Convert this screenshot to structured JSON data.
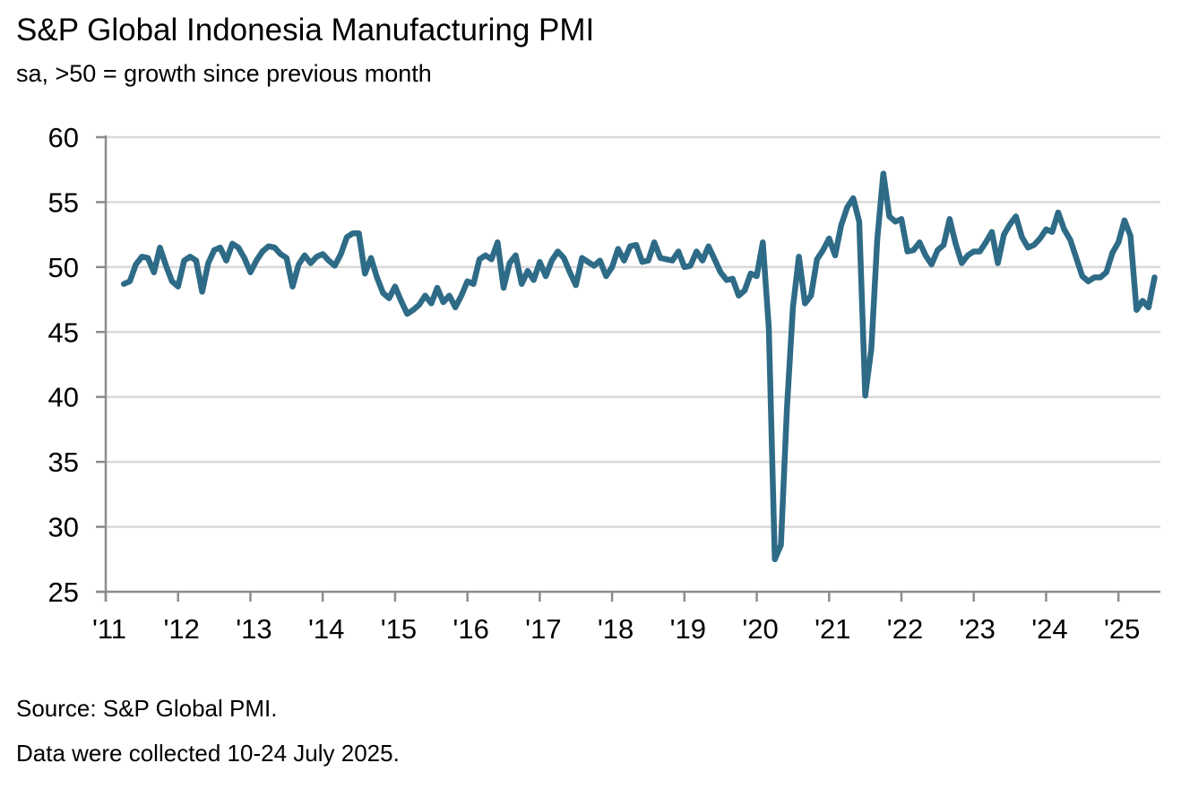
{
  "chart_data": {
    "type": "line",
    "title": "S&P Global Indonesia Manufacturing PMI",
    "subtitle": "sa, >50 = growth since previous month",
    "xlabel": "",
    "ylabel": "",
    "ylim": [
      25,
      60
    ],
    "yticks": [
      25,
      30,
      35,
      40,
      45,
      50,
      55,
      60
    ],
    "ytick_labels": [
      "25",
      "30",
      "35",
      "40",
      "45",
      "50",
      "55",
      "60"
    ],
    "xlim": [
      2011.0,
      2025.58
    ],
    "xticks": [
      2011,
      2012,
      2013,
      2014,
      2015,
      2016,
      2017,
      2018,
      2019,
      2020,
      2021,
      2022,
      2023,
      2024,
      2025
    ],
    "xtick_labels": [
      "'11",
      "'12",
      "'13",
      "'14",
      "'15",
      "'16",
      "'17",
      "'18",
      "'19",
      "'20",
      "'21",
      "'22",
      "'23",
      "'24",
      "'25"
    ],
    "grid": "horizontal",
    "legend": "none",
    "x_start": "2011-04",
    "x_end": "2025-07",
    "frequency": "monthly",
    "series": [
      {
        "name": "S&P Global Indonesia Manufacturing PMI",
        "color": "#2e6b87",
        "values": [
          48.7,
          48.9,
          50.2,
          50.8,
          50.7,
          49.6,
          51.5,
          50.1,
          48.9,
          48.5,
          50.5,
          50.8,
          50.5,
          48.1,
          50.3,
          51.3,
          51.5,
          50.5,
          51.8,
          51.5,
          50.7,
          49.6,
          50.5,
          51.2,
          51.6,
          51.5,
          51.0,
          50.7,
          48.5,
          50.2,
          50.9,
          50.3,
          50.8,
          51.0,
          50.5,
          50.1,
          51.0,
          52.3,
          52.6,
          52.6,
          49.5,
          50.7,
          49.2,
          48.0,
          47.6,
          48.5,
          47.4,
          46.4,
          46.7,
          47.1,
          47.8,
          47.2,
          48.4,
          47.3,
          47.8,
          46.9,
          47.8,
          48.9,
          48.7,
          50.6,
          50.9,
          50.6,
          51.9,
          48.4,
          50.3,
          50.9,
          48.7,
          49.7,
          49.0,
          50.4,
          49.3,
          50.5,
          51.2,
          50.7,
          49.6,
          48.6,
          50.7,
          50.4,
          50.1,
          50.5,
          49.3,
          50.0,
          51.4,
          50.5,
          51.6,
          51.7,
          50.4,
          50.5,
          51.9,
          50.7,
          50.6,
          50.5,
          51.2,
          50.0,
          50.1,
          51.2,
          50.5,
          51.6,
          50.6,
          49.6,
          49.0,
          49.1,
          47.8,
          48.2,
          49.5,
          49.3,
          51.9,
          45.3,
          27.5,
          28.6,
          39.1,
          46.9,
          50.8,
          47.2,
          47.8,
          50.6,
          51.3,
          52.2,
          50.9,
          53.2,
          54.6,
          55.3,
          53.5,
          40.1,
          43.7,
          52.2,
          57.2,
          53.9,
          53.5,
          53.7,
          51.2,
          51.3,
          51.9,
          50.9,
          50.2,
          51.3,
          51.7,
          53.7,
          51.8,
          50.3,
          50.9,
          51.2,
          51.2,
          51.9,
          52.7,
          50.3,
          52.5,
          53.3,
          53.9,
          52.3,
          51.5,
          51.7,
          52.2,
          52.9,
          52.7,
          54.2,
          52.9,
          52.1,
          50.7,
          49.3,
          48.9,
          49.2,
          49.2,
          49.6,
          51.1,
          51.9,
          53.6,
          52.4,
          46.7,
          47.4,
          46.9,
          49.2
        ]
      }
    ]
  },
  "footer": {
    "source": "Source: S&P Global PMI.",
    "note": "Data were collected 10-24 July 2025."
  }
}
